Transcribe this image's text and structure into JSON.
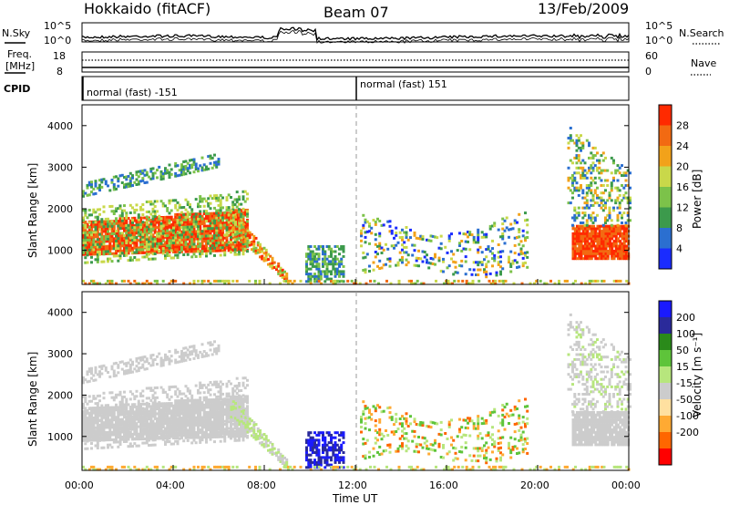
{
  "header": {
    "station": "Hokkaido (fitACF)",
    "beam": "Beam 07",
    "date": "13/Feb/2009"
  },
  "colors": {
    "power_scale": [
      "#1a2cff",
      "#2b6fd0",
      "#3c9a4c",
      "#7cc24a",
      "#c9d84a",
      "#f2a21a",
      "#f26a12",
      "#ff2a00"
    ],
    "velocity_scale": [
      "#ff0000",
      "#ff6600",
      "#ffaa33",
      "#ffe0a0",
      "#cccccc",
      "#b7e67d",
      "#5ec43a",
      "#2a8a1a",
      "#2a2a9a",
      "#1a1aff"
    ]
  },
  "chart_data": [
    {
      "type": "line",
      "panel": "noise",
      "left_label": "N.Sky",
      "right_label": "N.Search",
      "left_ticks": [
        "10^5",
        "10^0"
      ],
      "right_ticks": [
        "10^5",
        "10^0"
      ]
    },
    {
      "type": "line",
      "panel": "freq-nave",
      "left_label": "Freq.",
      "left_unit": "[MHz]",
      "right_label": "Nave",
      "left_ticks": [
        "18",
        "8"
      ],
      "right_ticks": [
        "60",
        "0"
      ]
    },
    {
      "type": "table",
      "panel": "cpid",
      "label": "CPID",
      "segments": [
        {
          "x": 0,
          "label": "normal (fast) -151"
        },
        {
          "x": 12,
          "label": "normal (fast) 151"
        }
      ]
    },
    {
      "type": "heatmap",
      "panel": "power",
      "ylabel": "Slant Range [km]",
      "yticks": [
        "4000",
        "3000",
        "2000",
        "1000"
      ],
      "ytick_values": [
        4000,
        3000,
        2000,
        1000
      ],
      "ylim": [
        180,
        4500
      ],
      "xlim": [
        0,
        24
      ],
      "colorbar_label": "Power [dB]",
      "colorbar_ticks": [
        "28",
        "24",
        "20",
        "16",
        "12",
        "8",
        "4"
      ],
      "colorbar_range": [
        0,
        32
      ]
    },
    {
      "type": "heatmap",
      "panel": "velocity",
      "ylabel": "Slant Range [km]",
      "yticks": [
        "4000",
        "3000",
        "2000",
        "1000"
      ],
      "ytick_values": [
        4000,
        3000,
        2000,
        1000
      ],
      "ylim": [
        180,
        4500
      ],
      "xlim": [
        0,
        24
      ],
      "colorbar_label": "Velocity [m s⁻¹]",
      "colorbar_ticks": [
        "200",
        "100",
        "50",
        "15",
        "-15",
        "-50",
        "-100",
        "-200"
      ]
    }
  ],
  "xaxis": {
    "ticks": [
      "00:00",
      "04:00",
      "08:00",
      "12:00",
      "16:00",
      "20:00",
      "00:00"
    ],
    "tick_values": [
      0,
      4,
      8,
      12,
      16,
      20,
      24
    ],
    "label": "Time UT"
  }
}
